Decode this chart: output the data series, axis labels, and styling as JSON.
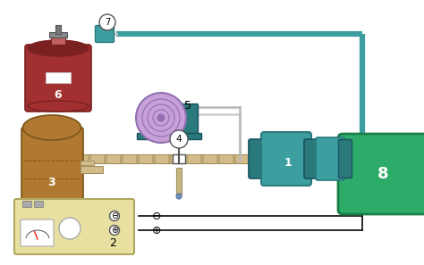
{
  "bg_color": "#ffffff",
  "teal": "#3d9ea0",
  "teal_dark": "#2a7a7c",
  "black": "#1a1a1a",
  "gas_tank": "#a33030",
  "gas_tank_dark": "#7a2020",
  "gas_tank_mid": "#b84040",
  "storage_tank": "#b07830",
  "storage_tank_dark": "#7a5518",
  "blower_purple": "#c8a0d8",
  "blower_purple_dark": "#9070b0",
  "blower_teal": "#2a7a7c",
  "power_supply": "#e8e0a0",
  "power_supply_dark": "#b0a860",
  "generator": "#2dab68",
  "generator_dark": "#1a8048",
  "pipe_tan": "#d4bc8a",
  "pipe_tan_dark": "#a09060",
  "gray": "#888888",
  "light_gray": "#cccccc",
  "white": "#ffffff",
  "dark_gray": "#555555"
}
